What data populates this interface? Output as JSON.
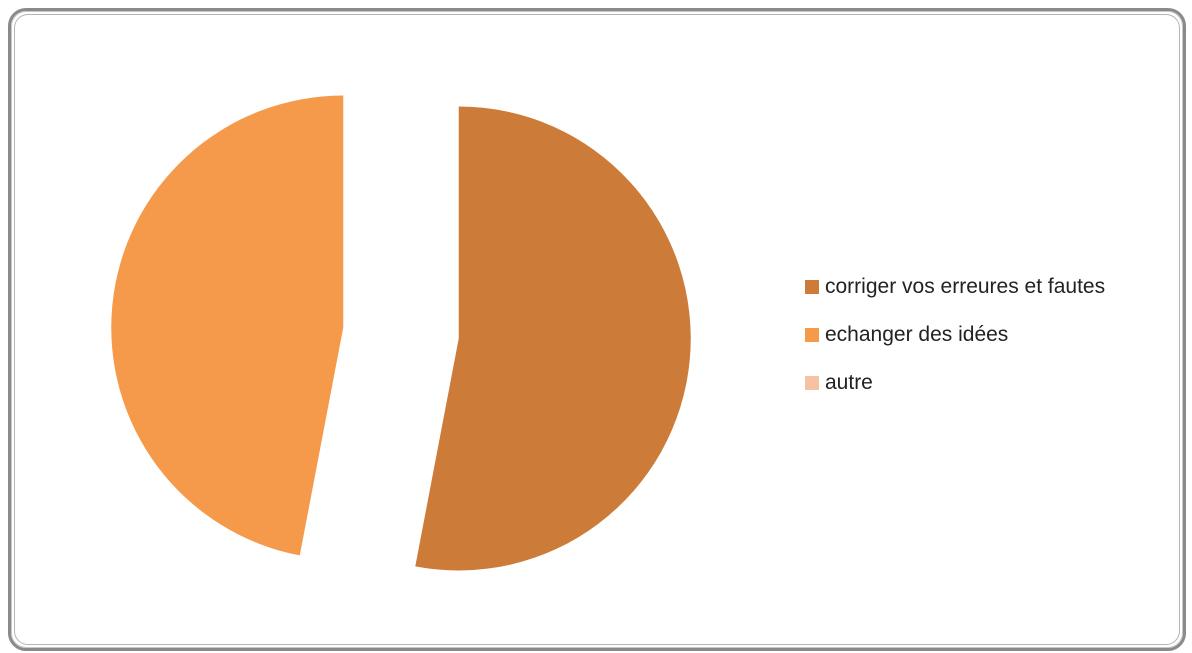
{
  "chart_data": {
    "type": "pie",
    "title": "",
    "exploded": true,
    "categories": [
      "corriger vos erreures et fautes",
      "echanger des idées",
      "autre"
    ],
    "values": [
      53,
      47,
      0
    ],
    "colors": [
      "#CD7B38",
      "#F59A4A",
      "#F7C1A4"
    ],
    "legend_position": "right"
  }
}
